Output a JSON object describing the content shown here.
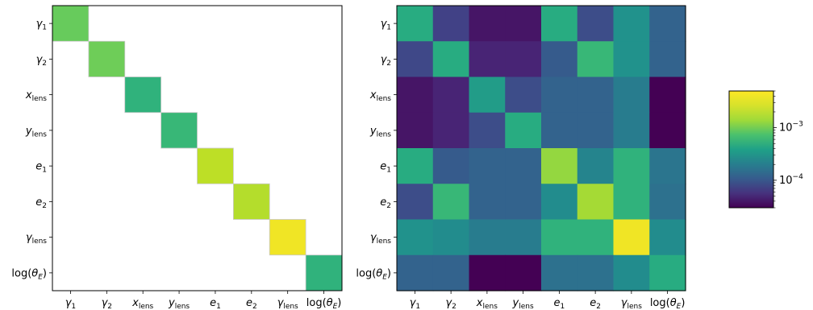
{
  "chart_data": [
    {
      "type": "heatmap",
      "title": "",
      "labels": [
        {
          "base": "γ",
          "sub": "1",
          "sub_italic": false
        },
        {
          "base": "γ",
          "sub": "2",
          "sub_italic": false
        },
        {
          "base": "x",
          "sub": "lens",
          "sub_italic": false
        },
        {
          "base": "y",
          "sub": "lens",
          "sub_italic": false
        },
        {
          "base": "e",
          "sub": "1",
          "sub_italic": false
        },
        {
          "base": "e",
          "sub": "2",
          "sub_italic": false
        },
        {
          "base": "γ",
          "sub": "lens",
          "sub_italic": false
        },
        {
          "base": "log(θ",
          "sub": "E",
          "sub_italic": true,
          "close": ")"
        }
      ],
      "masked": "off-diagonal",
      "color_scale": "log",
      "colormap": "viridis",
      "clim": [
        3e-05,
        0.005
      ],
      "matrix": [
        [
          0.0015,
          null,
          null,
          null,
          null,
          null,
          null,
          null
        ],
        [
          null,
          0.0016,
          null,
          null,
          null,
          null,
          null,
          null
        ],
        [
          null,
          null,
          0.0008,
          null,
          null,
          null,
          null,
          null
        ],
        [
          null,
          null,
          null,
          0.0009,
          null,
          null,
          null,
          null
        ],
        [
          null,
          null,
          null,
          null,
          0.003,
          null,
          null,
          null
        ],
        [
          null,
          null,
          null,
          null,
          null,
          0.0028,
          null,
          null
        ],
        [
          null,
          null,
          null,
          null,
          null,
          null,
          0.0045,
          null
        ],
        [
          null,
          null,
          null,
          null,
          null,
          null,
          null,
          0.0008
        ]
      ]
    },
    {
      "type": "heatmap",
      "title": "",
      "color_scale": "log",
      "colormap": "viridis",
      "clim": [
        3e-05,
        0.005
      ],
      "matrix": [
        [
          0.0007,
          8e-05,
          4e-05,
          4e-05,
          0.0007,
          0.0001,
          0.0004,
          0.00015
        ],
        [
          9e-05,
          0.0007,
          5e-05,
          5e-05,
          0.00013,
          0.0009,
          0.0004,
          0.00015
        ],
        [
          4e-05,
          5e-05,
          0.0005,
          0.0001,
          0.00015,
          0.00015,
          0.00025,
          3e-05
        ],
        [
          4e-05,
          5e-05,
          0.0001,
          0.0007,
          0.00015,
          0.00015,
          0.00025,
          3e-05
        ],
        [
          0.0007,
          0.00013,
          0.00015,
          0.00015,
          0.0022,
          0.0003,
          0.0008,
          0.00022
        ],
        [
          0.0001,
          0.0009,
          0.00015,
          0.00015,
          0.00035,
          0.0025,
          0.0008,
          0.0002
        ],
        [
          0.0004,
          0.00035,
          0.00025,
          0.00025,
          0.0008,
          0.0008,
          0.0045,
          0.00035
        ],
        [
          0.00015,
          0.00015,
          3e-05,
          3e-05,
          0.0002,
          0.0002,
          0.00035,
          0.0007
        ]
      ]
    }
  ],
  "colorbar": {
    "ticks": [
      {
        "base": "10",
        "exp": "−3",
        "value": 0.001
      },
      {
        "base": "10",
        "exp": "−4",
        "value": 0.0001
      }
    ]
  }
}
